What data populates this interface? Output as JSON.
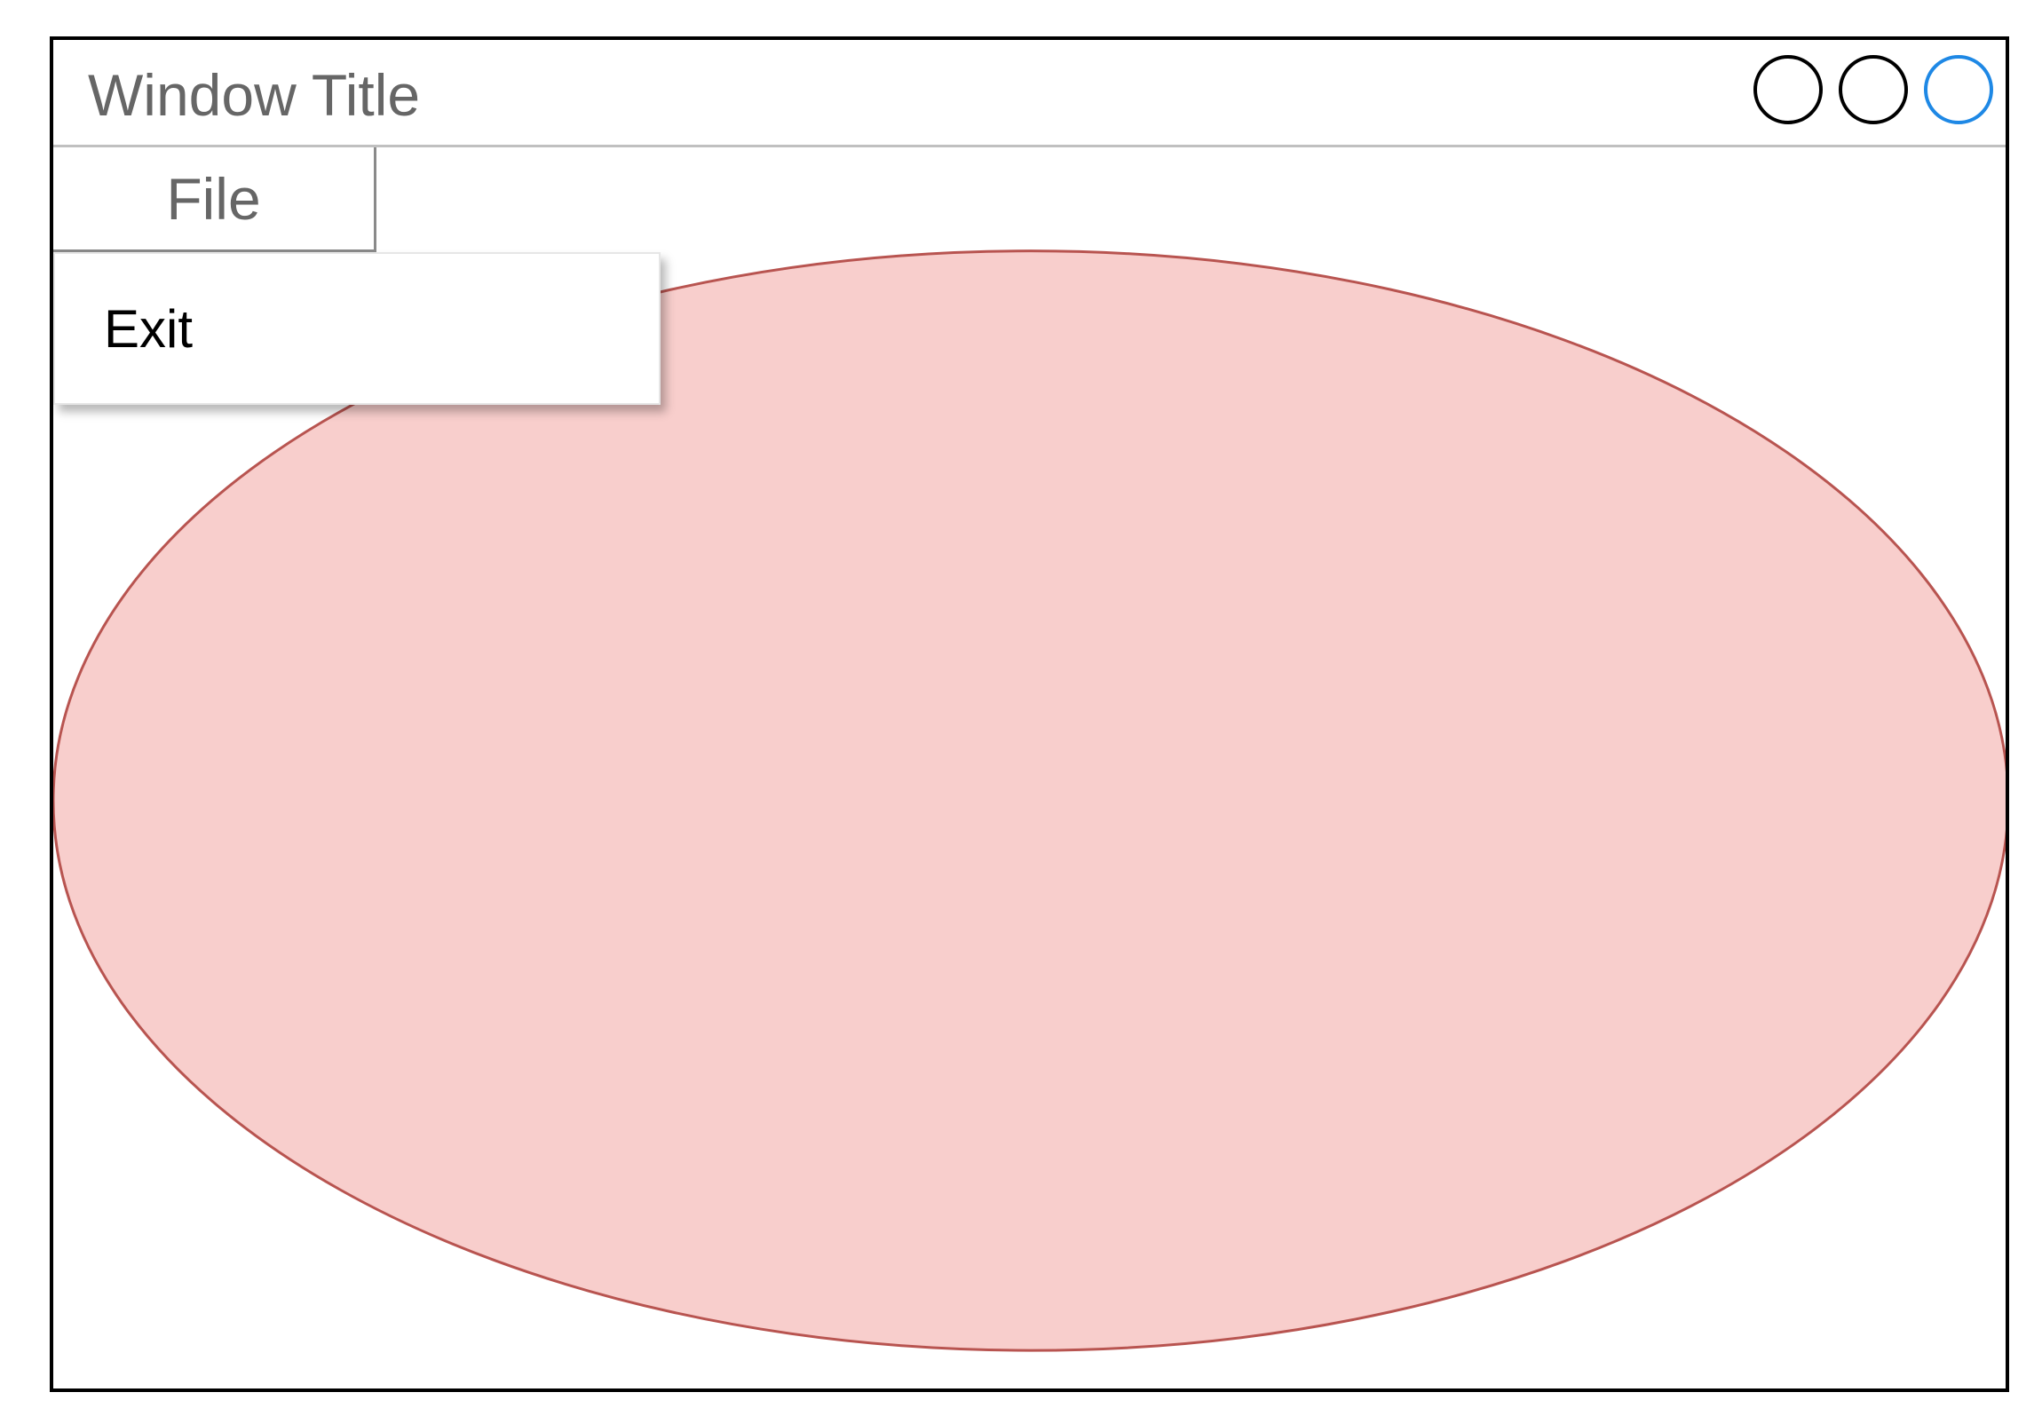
{
  "window": {
    "title": "Window Title",
    "controls": [
      {
        "name": "minimize",
        "color": "#000000"
      },
      {
        "name": "maximize",
        "color": "#000000"
      },
      {
        "name": "close",
        "color": "#1e88e5"
      }
    ]
  },
  "menu": {
    "file_label": "File",
    "dropdown_items": [
      {
        "label": "Exit"
      }
    ]
  },
  "canvas": {
    "shape": "ellipse",
    "fill_color": "#f8cecc",
    "stroke_color": "#b85450"
  }
}
